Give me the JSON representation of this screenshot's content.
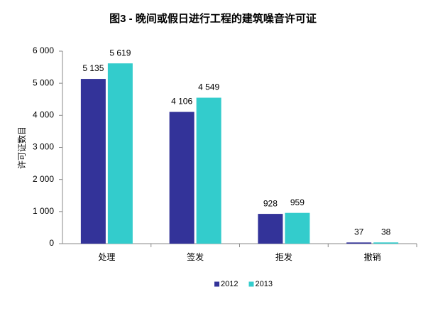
{
  "chart_data": {
    "type": "bar",
    "title": "图3 - 晚间或假日进行工程的建筑噪音许可证",
    "y_label": "许可证数目",
    "categories": [
      "处理",
      "签发",
      "拒发",
      "撤销"
    ],
    "series": [
      {
        "name": "2012",
        "color": "#333399",
        "values": [
          5135,
          4106,
          928,
          37
        ],
        "value_labels": [
          "5 135",
          "4 106",
          "928",
          "37"
        ]
      },
      {
        "name": "2013",
        "color": "#33cccc",
        "values": [
          5619,
          4549,
          959,
          38
        ],
        "value_labels": [
          "5 619",
          "4 549",
          "959",
          "38"
        ]
      }
    ],
    "ylim": [
      0,
      6000
    ],
    "yticks": [
      0,
      {
        "value": 1000,
        "label": "1 000"
      },
      {
        "value": 2000,
        "label": "2 000"
      },
      {
        "value": 3000,
        "label": "3 000"
      },
      {
        "value": 4000,
        "label": "4 000"
      },
      {
        "value": 5000,
        "label": "5 000"
      },
      {
        "value": 6000,
        "label": "6 000"
      }
    ],
    "legend": "bottom"
  }
}
